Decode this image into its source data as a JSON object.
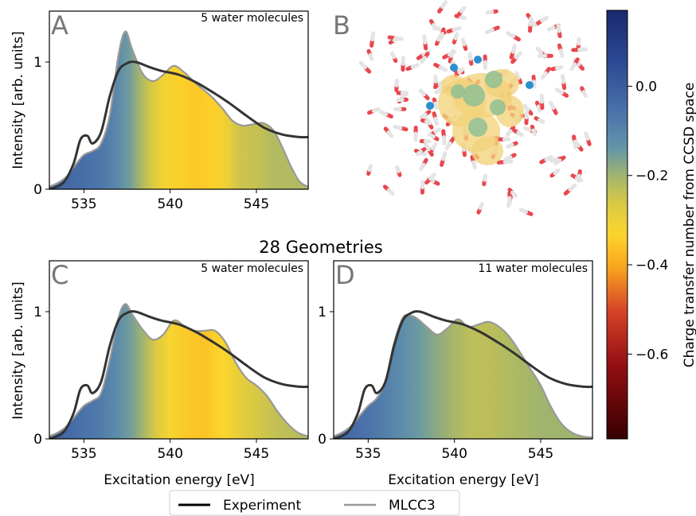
{
  "panels": [
    {
      "letter": "A",
      "annotation": "5 water molecules"
    },
    {
      "letter": "B"
    },
    {
      "letter": "C",
      "annotation": "5 water molecules"
    },
    {
      "letter": "D",
      "annotation": "11 water molecules"
    }
  ],
  "section_title": "28 Geometries",
  "legend": {
    "experiment": "Experiment",
    "mlcc3": "MLCC3"
  },
  "colorbar": {
    "label": "Charge transfer number from CCSD space",
    "ticks": [
      "0.0",
      "−0.2",
      "−0.4",
      "−0.6"
    ],
    "tick_values": [
      0.0,
      -0.2,
      -0.4,
      -0.6
    ],
    "range": [
      -0.79,
      0.17
    ]
  },
  "colors": {
    "experiment": "#333333",
    "mlcc3": "#999999"
  },
  "chart_data": [
    {
      "panel": "A",
      "type": "area",
      "xlabel": "",
      "ylabel": "Intensity [arb. units]",
      "xlim": [
        533,
        548
      ],
      "ylim": [
        0,
        1.4
      ],
      "xticks": [
        "535",
        "540",
        "545"
      ],
      "xtick_values": [
        535,
        540,
        545
      ],
      "yticks": [
        "0",
        "1"
      ],
      "ytick_values": [
        0,
        1
      ],
      "series": [
        {
          "name": "Experiment",
          "x": [
            533,
            533.8,
            534.4,
            534.8,
            535.2,
            535.5,
            536.0,
            536.5,
            537.0,
            537.5,
            538.0,
            538.8,
            539.5,
            540.5,
            541.5,
            542.5,
            543.5,
            544.5,
            545.5,
            546.5,
            547.5,
            548
          ],
          "y": [
            0.0,
            0.05,
            0.2,
            0.39,
            0.42,
            0.36,
            0.45,
            0.73,
            0.93,
            0.99,
            1.0,
            0.96,
            0.93,
            0.9,
            0.84,
            0.76,
            0.67,
            0.57,
            0.48,
            0.43,
            0.41,
            0.41
          ]
        },
        {
          "name": "MLCC3",
          "x": [
            533,
            533.5,
            534.0,
            534.5,
            535.0,
            535.5,
            536.0,
            536.5,
            537.0,
            537.4,
            537.8,
            538.4,
            539.0,
            539.6,
            540.2,
            540.8,
            541.5,
            542.3,
            543.0,
            543.6,
            544.2,
            544.8,
            545.4,
            546.0,
            546.5,
            547.0,
            547.5,
            548
          ],
          "y": [
            0.02,
            0.05,
            0.1,
            0.19,
            0.27,
            0.3,
            0.36,
            0.58,
            1.05,
            1.24,
            1.1,
            0.91,
            0.85,
            0.9,
            0.97,
            0.92,
            0.83,
            0.74,
            0.64,
            0.54,
            0.5,
            0.51,
            0.52,
            0.46,
            0.33,
            0.18,
            0.06,
            0.02
          ]
        }
      ],
      "fill_charge_transfer": {
        "x": [
          533,
          534,
          535,
          536,
          536.8,
          537.6,
          538.3,
          539.0,
          539.6,
          540.5,
          541.5,
          542.5,
          543.3,
          544.0,
          545.0,
          546.0,
          548
        ],
        "value": [
          -0.02,
          -0.03,
          -0.05,
          -0.07,
          -0.1,
          -0.15,
          -0.21,
          -0.27,
          -0.31,
          -0.34,
          -0.35,
          -0.34,
          -0.3,
          -0.25,
          -0.24,
          -0.22,
          -0.22
        ]
      }
    },
    {
      "panel": "C",
      "type": "area",
      "xlabel": "Excitation energy [eV]",
      "ylabel": "Intensity [arb. units]",
      "xlim": [
        533,
        548
      ],
      "ylim": [
        0,
        1.4
      ],
      "xticks": [
        "535",
        "540",
        "545"
      ],
      "xtick_values": [
        535,
        540,
        545
      ],
      "yticks": [
        "0",
        "1"
      ],
      "ytick_values": [
        0,
        1
      ],
      "series": [
        {
          "name": "Experiment",
          "x": [
            533,
            533.8,
            534.4,
            534.8,
            535.2,
            535.5,
            536.0,
            536.5,
            537.0,
            537.5,
            538.0,
            538.8,
            539.5,
            540.5,
            541.5,
            542.5,
            543.5,
            544.5,
            545.5,
            546.5,
            547.5,
            548
          ],
          "y": [
            0.0,
            0.05,
            0.2,
            0.39,
            0.42,
            0.36,
            0.45,
            0.73,
            0.93,
            0.99,
            1.0,
            0.96,
            0.93,
            0.9,
            0.84,
            0.76,
            0.67,
            0.57,
            0.48,
            0.43,
            0.41,
            0.41
          ]
        },
        {
          "name": "MLCC3",
          "x": [
            533,
            533.5,
            534.0,
            534.5,
            535.0,
            535.5,
            536.0,
            536.5,
            537.0,
            537.4,
            537.8,
            538.4,
            539.0,
            539.6,
            540.2,
            540.8,
            541.4,
            542.0,
            542.6,
            543.2,
            543.8,
            544.4,
            545.0,
            545.6,
            546.2,
            546.8,
            547.4,
            548
          ],
          "y": [
            0.02,
            0.05,
            0.1,
            0.18,
            0.26,
            0.3,
            0.36,
            0.62,
            0.95,
            1.06,
            0.98,
            0.86,
            0.78,
            0.82,
            0.93,
            0.89,
            0.85,
            0.85,
            0.85,
            0.76,
            0.6,
            0.48,
            0.42,
            0.34,
            0.22,
            0.12,
            0.05,
            0.02
          ]
        }
      ],
      "fill_charge_transfer": {
        "x": [
          533,
          534,
          535,
          536,
          537,
          537.8,
          538.5,
          539.2,
          540.0,
          541.0,
          542.0,
          543.0,
          544.0,
          545.0,
          546.0,
          548
        ],
        "value": [
          -0.02,
          -0.03,
          -0.06,
          -0.08,
          -0.12,
          -0.16,
          -0.21,
          -0.27,
          -0.32,
          -0.35,
          -0.36,
          -0.33,
          -0.29,
          -0.26,
          -0.24,
          -0.22
        ]
      }
    },
    {
      "panel": "D",
      "type": "area",
      "xlabel": "Excitation energy [eV]",
      "ylabel": "",
      "xlim": [
        533,
        548
      ],
      "ylim": [
        0,
        1.4
      ],
      "xticks": [
        "535",
        "540",
        "545"
      ],
      "xtick_values": [
        535,
        540,
        545
      ],
      "yticks": [
        "0",
        "1"
      ],
      "ytick_values": [
        0,
        1
      ],
      "series": [
        {
          "name": "Experiment",
          "x": [
            533,
            533.8,
            534.4,
            534.8,
            535.2,
            535.5,
            536.0,
            536.5,
            537.0,
            537.5,
            538.0,
            538.8,
            539.5,
            540.5,
            541.5,
            542.5,
            543.5,
            544.5,
            545.5,
            546.5,
            547.5,
            548
          ],
          "y": [
            0.0,
            0.05,
            0.2,
            0.39,
            0.42,
            0.36,
            0.45,
            0.73,
            0.93,
            0.99,
            1.0,
            0.96,
            0.93,
            0.9,
            0.84,
            0.76,
            0.67,
            0.57,
            0.48,
            0.43,
            0.41,
            0.41
          ]
        },
        {
          "name": "MLCC3",
          "x": [
            533,
            533.5,
            534.0,
            534.5,
            535.0,
            535.5,
            536.0,
            536.5,
            537.0,
            537.4,
            537.8,
            538.4,
            539.0,
            539.6,
            540.2,
            540.8,
            541.4,
            542.0,
            542.6,
            543.2,
            543.8,
            544.4,
            545.0,
            545.6,
            546.2,
            546.8,
            547.4,
            548
          ],
          "y": [
            0.02,
            0.05,
            0.1,
            0.18,
            0.26,
            0.32,
            0.45,
            0.75,
            0.95,
            0.97,
            0.95,
            0.88,
            0.82,
            0.87,
            0.94,
            0.88,
            0.9,
            0.92,
            0.88,
            0.8,
            0.68,
            0.55,
            0.42,
            0.25,
            0.12,
            0.05,
            0.02,
            0.01
          ]
        }
      ],
      "fill_charge_transfer": {
        "x": [
          533,
          534,
          535,
          536,
          537,
          538,
          539,
          540,
          541,
          542,
          543,
          544,
          545,
          546,
          548
        ],
        "value": [
          -0.02,
          -0.04,
          -0.06,
          -0.09,
          -0.12,
          -0.15,
          -0.18,
          -0.21,
          -0.23,
          -0.23,
          -0.22,
          -0.21,
          -0.2,
          -0.2,
          -0.2
        ]
      }
    }
  ]
}
